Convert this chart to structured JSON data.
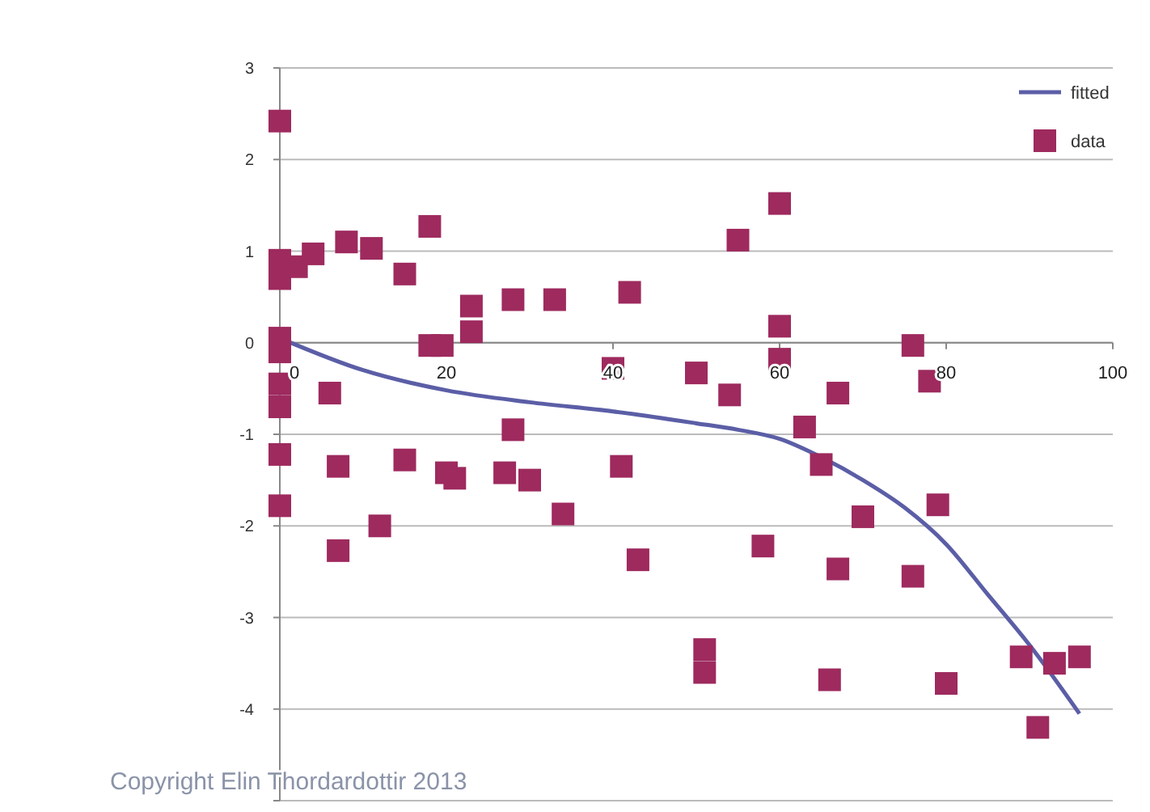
{
  "chart_data": {
    "type": "scatter",
    "xlim": [
      0,
      100
    ],
    "xticks": [
      0,
      20,
      40,
      60,
      80,
      100
    ],
    "ylim": [
      -5,
      3
    ],
    "yticks": [
      {
        "value": -5,
        "label": null
      },
      -4,
      -3,
      -2,
      -1,
      0,
      1,
      2,
      3
    ],
    "grid": "y",
    "legend": "top right",
    "marker": "square",
    "annotations": [
      "Copyright Elin Thordardottir 2013"
    ],
    "series": [
      {
        "name": "fitted",
        "type": "line",
        "color": "#5b5ea6",
        "marker": "none",
        "x": [
          0,
          10,
          20,
          30,
          40,
          50,
          55,
          60,
          65,
          70,
          75,
          80,
          85,
          90,
          96
        ],
        "values": [
          0.05,
          -0.3,
          -0.52,
          -0.65,
          -0.75,
          -0.88,
          -0.95,
          -1.05,
          -1.25,
          -1.5,
          -1.8,
          -2.2,
          -2.75,
          -3.3,
          -4.05
        ]
      },
      {
        "name": "data",
        "color": "#9e2a5e",
        "x": [
          0,
          0,
          0,
          0,
          0,
          0,
          0,
          0,
          0,
          2,
          4,
          6,
          7,
          7,
          8,
          11,
          15,
          15,
          12,
          18,
          18,
          19.5,
          20,
          21,
          23,
          23,
          28,
          28,
          27,
          30,
          33,
          34,
          40,
          41,
          42,
          43,
          50,
          51,
          51,
          54,
          55,
          58,
          60,
          60,
          60,
          63,
          65,
          66,
          67,
          67,
          70,
          76,
          76,
          78,
          79,
          80,
          89,
          91,
          93,
          96
        ],
        "values": [
          2.42,
          0.9,
          0.7,
          0.05,
          -0.1,
          -0.45,
          -0.7,
          -1.22,
          -1.78,
          0.83,
          0.97,
          -0.55,
          -1.35,
          -2.27,
          1.1,
          1.03,
          0.75,
          -1.28,
          -2.0,
          1.27,
          -0.03,
          -0.03,
          -1.42,
          -1.48,
          0.4,
          0.12,
          0.47,
          -0.95,
          -1.42,
          -1.5,
          0.47,
          -1.87,
          -0.28,
          -1.35,
          0.55,
          -2.37,
          -0.33,
          -3.35,
          -3.6,
          -0.57,
          1.12,
          -2.22,
          1.52,
          0.18,
          -0.18,
          -0.92,
          -1.33,
          -3.68,
          -0.55,
          -2.47,
          -1.9,
          -0.03,
          -2.55,
          -0.42,
          -1.77,
          -3.72,
          -3.43,
          -4.2,
          -3.5,
          -3.43
        ]
      }
    ]
  }
}
